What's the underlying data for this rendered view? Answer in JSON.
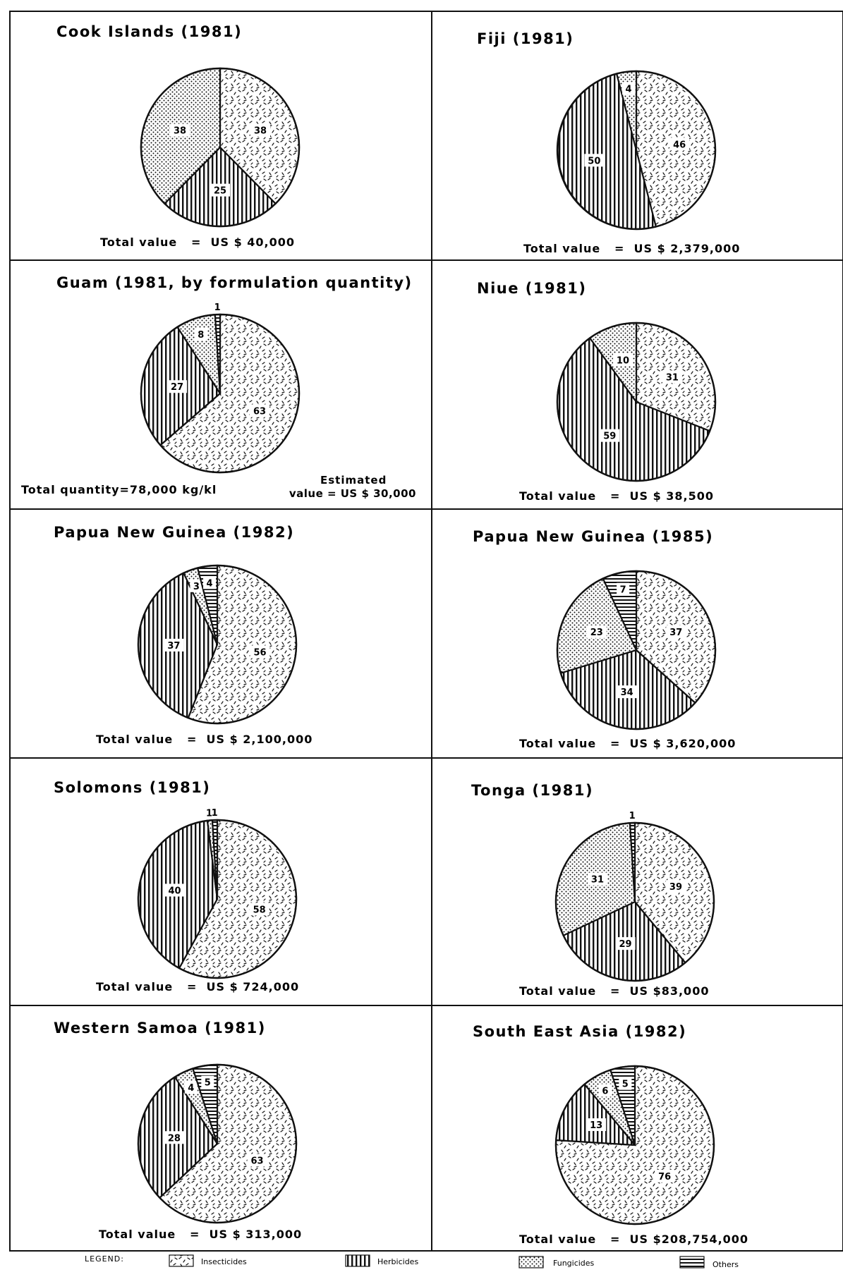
{
  "colors": {
    "ink": "#111111",
    "paper": "#ffffff"
  },
  "chart_data": [
    {
      "type": "pie",
      "title": "Cook Islands (1981)",
      "categories": [
        "Insecticides",
        "Herbicides",
        "Fungicides"
      ],
      "values": [
        38,
        25,
        38
      ],
      "footer": "Total value   =  US $ 40,000"
    },
    {
      "type": "pie",
      "title": "Fiji (1981)",
      "categories": [
        "Insecticides",
        "Herbicides",
        "Fungicides"
      ],
      "values": [
        46,
        50,
        4
      ],
      "footer": "Total value   =  US $ 2,379,000"
    },
    {
      "type": "pie",
      "title": "Guam (1981, by formulation quantity)",
      "categories": [
        "Insecticides",
        "Herbicides",
        "Fungicides",
        "Others"
      ],
      "values": [
        63,
        27,
        8,
        1
      ],
      "footer": "Total quantity=78,000 kg/kl",
      "footer_right_1": "Estimated",
      "footer_right_2": "value = US $ 30,000"
    },
    {
      "type": "pie",
      "title": "Niue (1981)",
      "categories": [
        "Insecticides",
        "Herbicides",
        "Fungicides"
      ],
      "values": [
        31,
        59,
        10
      ],
      "footer": "Total value   =  US $ 38,500"
    },
    {
      "type": "pie",
      "title": "Papua New Guinea (1982)",
      "categories": [
        "Insecticides",
        "Herbicides",
        "Fungicides",
        "Others"
      ],
      "values": [
        56,
        37,
        3,
        4
      ],
      "footer": "Total value   =  US $ 2,100,000"
    },
    {
      "type": "pie",
      "title": "Papua New Guinea (1985)",
      "categories": [
        "Insecticides",
        "Herbicides",
        "Fungicides",
        "Others"
      ],
      "values": [
        37,
        34,
        23,
        7
      ],
      "footer": "Total value   =  US $ 3,620,000"
    },
    {
      "type": "pie",
      "title": "Solomons (1981)",
      "categories": [
        "Insecticides",
        "Herbicides",
        "Fungicides",
        "Others"
      ],
      "values": [
        58,
        40,
        1,
        1
      ],
      "footer": "Total value   =  US $ 724,000"
    },
    {
      "type": "pie",
      "title": "Tonga (1981)",
      "categories": [
        "Insecticides",
        "Herbicides",
        "Fungicides",
        "Others"
      ],
      "values": [
        39,
        29,
        31,
        1
      ],
      "footer": "Total value   =  US $83,000"
    },
    {
      "type": "pie",
      "title": "Western Samoa (1981)",
      "categories": [
        "Insecticides",
        "Herbicides",
        "Fungicides",
        "Others"
      ],
      "values": [
        63,
        28,
        4,
        5
      ],
      "footer": "Total value   =  US $ 313,000"
    },
    {
      "type": "pie",
      "title": "South East Asia (1982)",
      "categories": [
        "Insecticides",
        "Herbicides",
        "Fungicides",
        "Others"
      ],
      "values": [
        76,
        13,
        6,
        5
      ],
      "footer": "Total value   =  US $208,754,000"
    }
  ],
  "legend": {
    "title": "LEGEND:",
    "items": [
      {
        "label": "Insecticides",
        "pattern": "dashes"
      },
      {
        "label": "Herbicides",
        "pattern": "vertical"
      },
      {
        "label": "Fungicides",
        "pattern": "dots"
      },
      {
        "label": "Others",
        "pattern": "horizontal"
      }
    ]
  }
}
